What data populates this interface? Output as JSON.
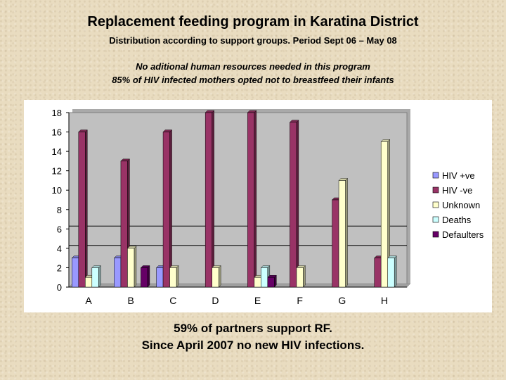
{
  "slide": {
    "title": "Replacement feeding program in Karatina District",
    "subtitle": "Distribution according to support groups. Period Sept 06 – May 08",
    "note_line1": "No aditional human resources needed in this program",
    "note_line2": "85% of HIV infected mothers opted not to breastfeed their infants",
    "footer_line1": "59% of partners support RF.",
    "footer_line2": "Since April 2007 no new HIV infections."
  },
  "colors": {
    "plot_background": "#c0c0c0",
    "chart_background": "#ffffff"
  },
  "chart_data": {
    "type": "bar",
    "categories": [
      "A",
      "B",
      "C",
      "D",
      "E",
      "F",
      "G",
      "H"
    ],
    "series": [
      {
        "name": "HIV +ve",
        "color": "#9999ff",
        "values": [
          3,
          3,
          2,
          0,
          0,
          0,
          0,
          0
        ]
      },
      {
        "name": "HIV -ve",
        "color": "#993366",
        "values": [
          16,
          13,
          16,
          18,
          18,
          17,
          9,
          3
        ]
      },
      {
        "name": "Unknown",
        "color": "#ffffcc",
        "values": [
          1,
          4,
          2,
          2,
          1,
          2,
          11,
          15
        ]
      },
      {
        "name": "Deaths",
        "color": "#ccffff",
        "values": [
          2,
          0,
          0,
          0,
          2,
          0,
          0,
          3
        ]
      },
      {
        "name": "Defaulters",
        "color": "#660066",
        "values": [
          0,
          2,
          0,
          0,
          1,
          0,
          0,
          0
        ]
      }
    ],
    "ylim": [
      0,
      18
    ],
    "yticks": [
      "0",
      "2",
      "4",
      "6",
      "8",
      "10",
      "12",
      "14",
      "16",
      "18"
    ],
    "reference_lines": [
      4.3,
      6.3
    ],
    "xlabel": "",
    "ylabel": "",
    "legend_position": "right",
    "grid": false
  }
}
